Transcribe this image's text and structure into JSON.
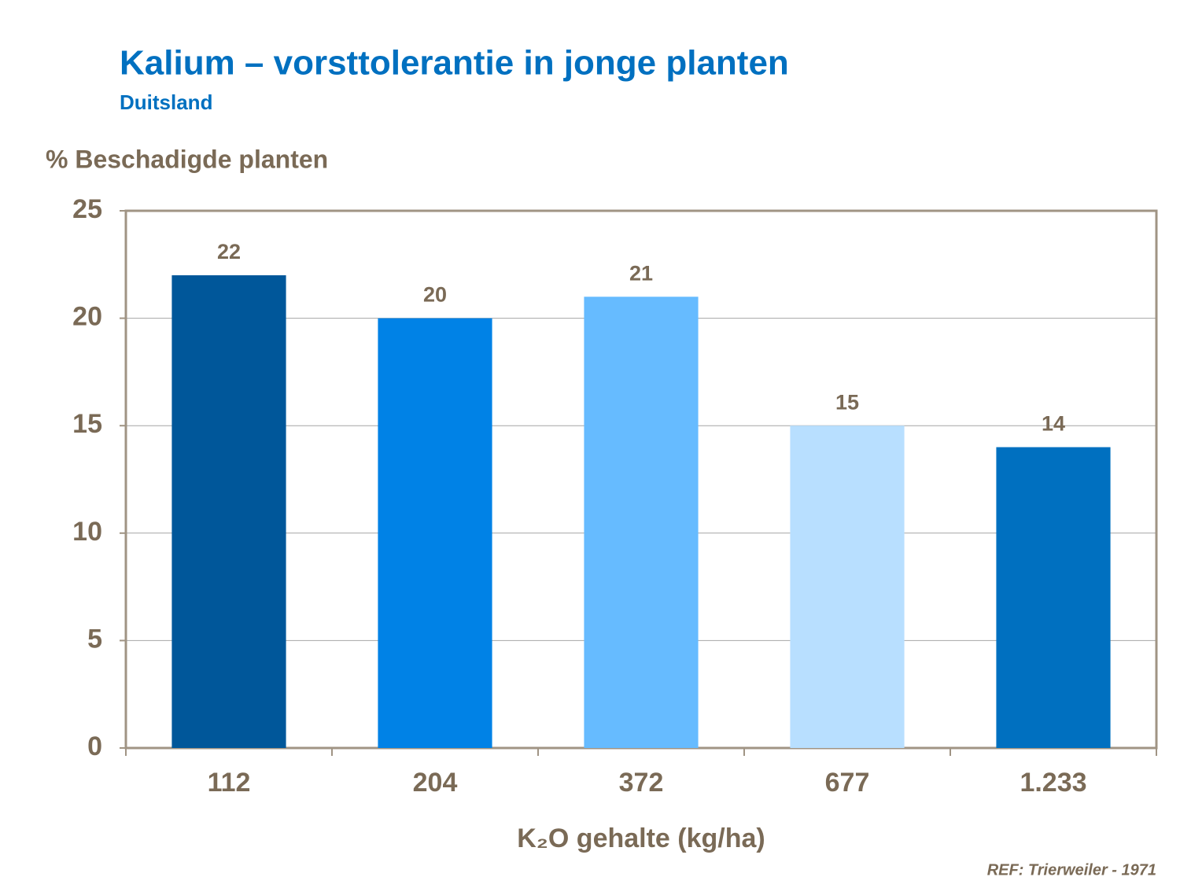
{
  "chart_data": {
    "type": "bar",
    "title": "Kalium – vorsttolerantie in jonge planten",
    "subtitle": "Duitsland",
    "y_label": "% Beschadigde planten",
    "x_label": "K₂O gehalte (kg/ha)",
    "source": "REF: Trierweiler - 1971",
    "categories": [
      "112",
      "204",
      "372",
      "677",
      "1.233"
    ],
    "values": [
      22,
      20,
      21,
      15,
      14
    ],
    "colors": [
      "#00579a",
      "#0082e6",
      "#66bbff",
      "#b8dfff",
      "#0070c0"
    ],
    "ylim": [
      0,
      25
    ],
    "yticks": [
      0,
      5,
      10,
      15,
      20,
      25
    ],
    "grid": true
  }
}
